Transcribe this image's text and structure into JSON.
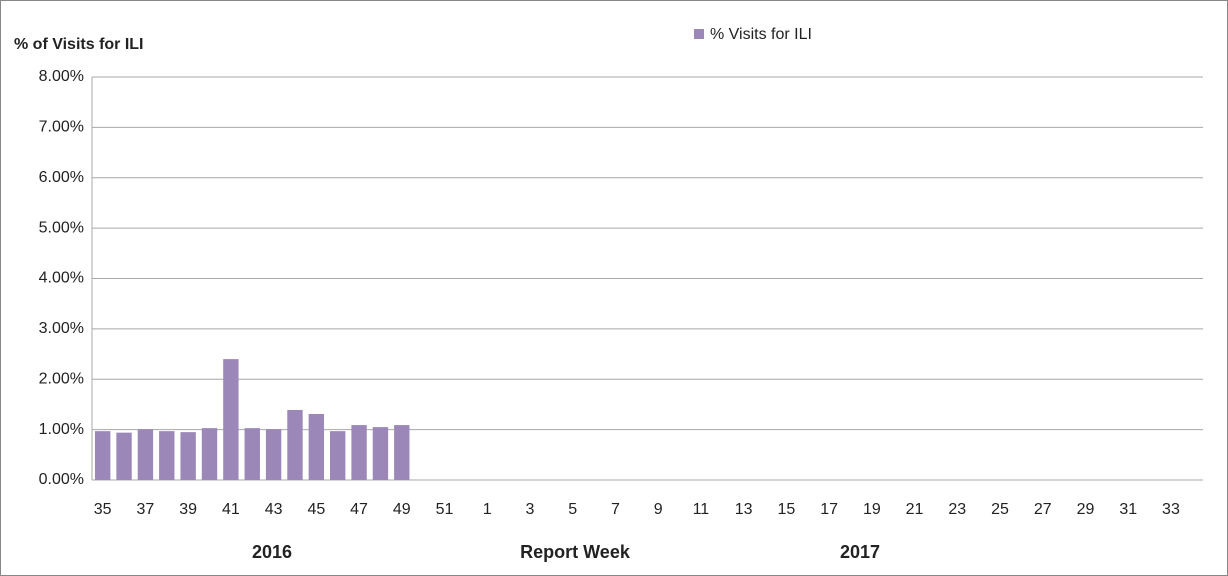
{
  "chart_data": {
    "type": "bar",
    "y_axis_title": "% of Visits for ILI",
    "x_axis_title": "Report Week",
    "year_labels": [
      "2016",
      "2017"
    ],
    "categories": [
      "35",
      null,
      "37",
      null,
      "39",
      null,
      "41",
      null,
      "43",
      null,
      "45",
      null,
      "47",
      null,
      "49",
      null,
      "51",
      null,
      "1",
      null,
      "3",
      null,
      "5",
      null,
      "7",
      null,
      "9",
      null,
      "11",
      null,
      "13",
      null,
      "15",
      null,
      "17",
      null,
      "19",
      null,
      "21",
      null,
      "23",
      null,
      "25",
      null,
      "27",
      null,
      "29",
      null,
      "31",
      null,
      "33",
      null
    ],
    "series": [
      {
        "name": "% Visits for ILI",
        "color": "#9b88b8",
        "values": [
          0.97,
          0.94,
          1.01,
          0.97,
          0.95,
          1.03,
          2.4,
          1.03,
          1.01,
          1.39,
          1.31,
          0.97,
          1.09,
          1.05,
          1.09,
          null,
          null,
          null,
          null,
          null,
          null,
          null,
          null,
          null,
          null,
          null,
          null,
          null,
          null,
          null,
          null,
          null,
          null,
          null,
          null,
          null,
          null,
          null,
          null,
          null,
          null,
          null,
          null,
          null,
          null,
          null,
          null,
          null,
          null,
          null,
          null,
          null
        ]
      }
    ],
    "ylim": [
      0,
      8
    ],
    "yticks": [
      {
        "value": 0,
        "label": "0.00%"
      },
      {
        "value": 1,
        "label": "1.00%"
      },
      {
        "value": 2,
        "label": "2.00%"
      },
      {
        "value": 3,
        "label": "3.00%"
      },
      {
        "value": 4,
        "label": "4.00%"
      },
      {
        "value": 5,
        "label": "5.00%"
      },
      {
        "value": 6,
        "label": "6.00%"
      },
      {
        "value": 7,
        "label": "7.00%"
      },
      {
        "value": 8,
        "label": "8.00%"
      }
    ],
    "grid": true,
    "legend": "top"
  }
}
